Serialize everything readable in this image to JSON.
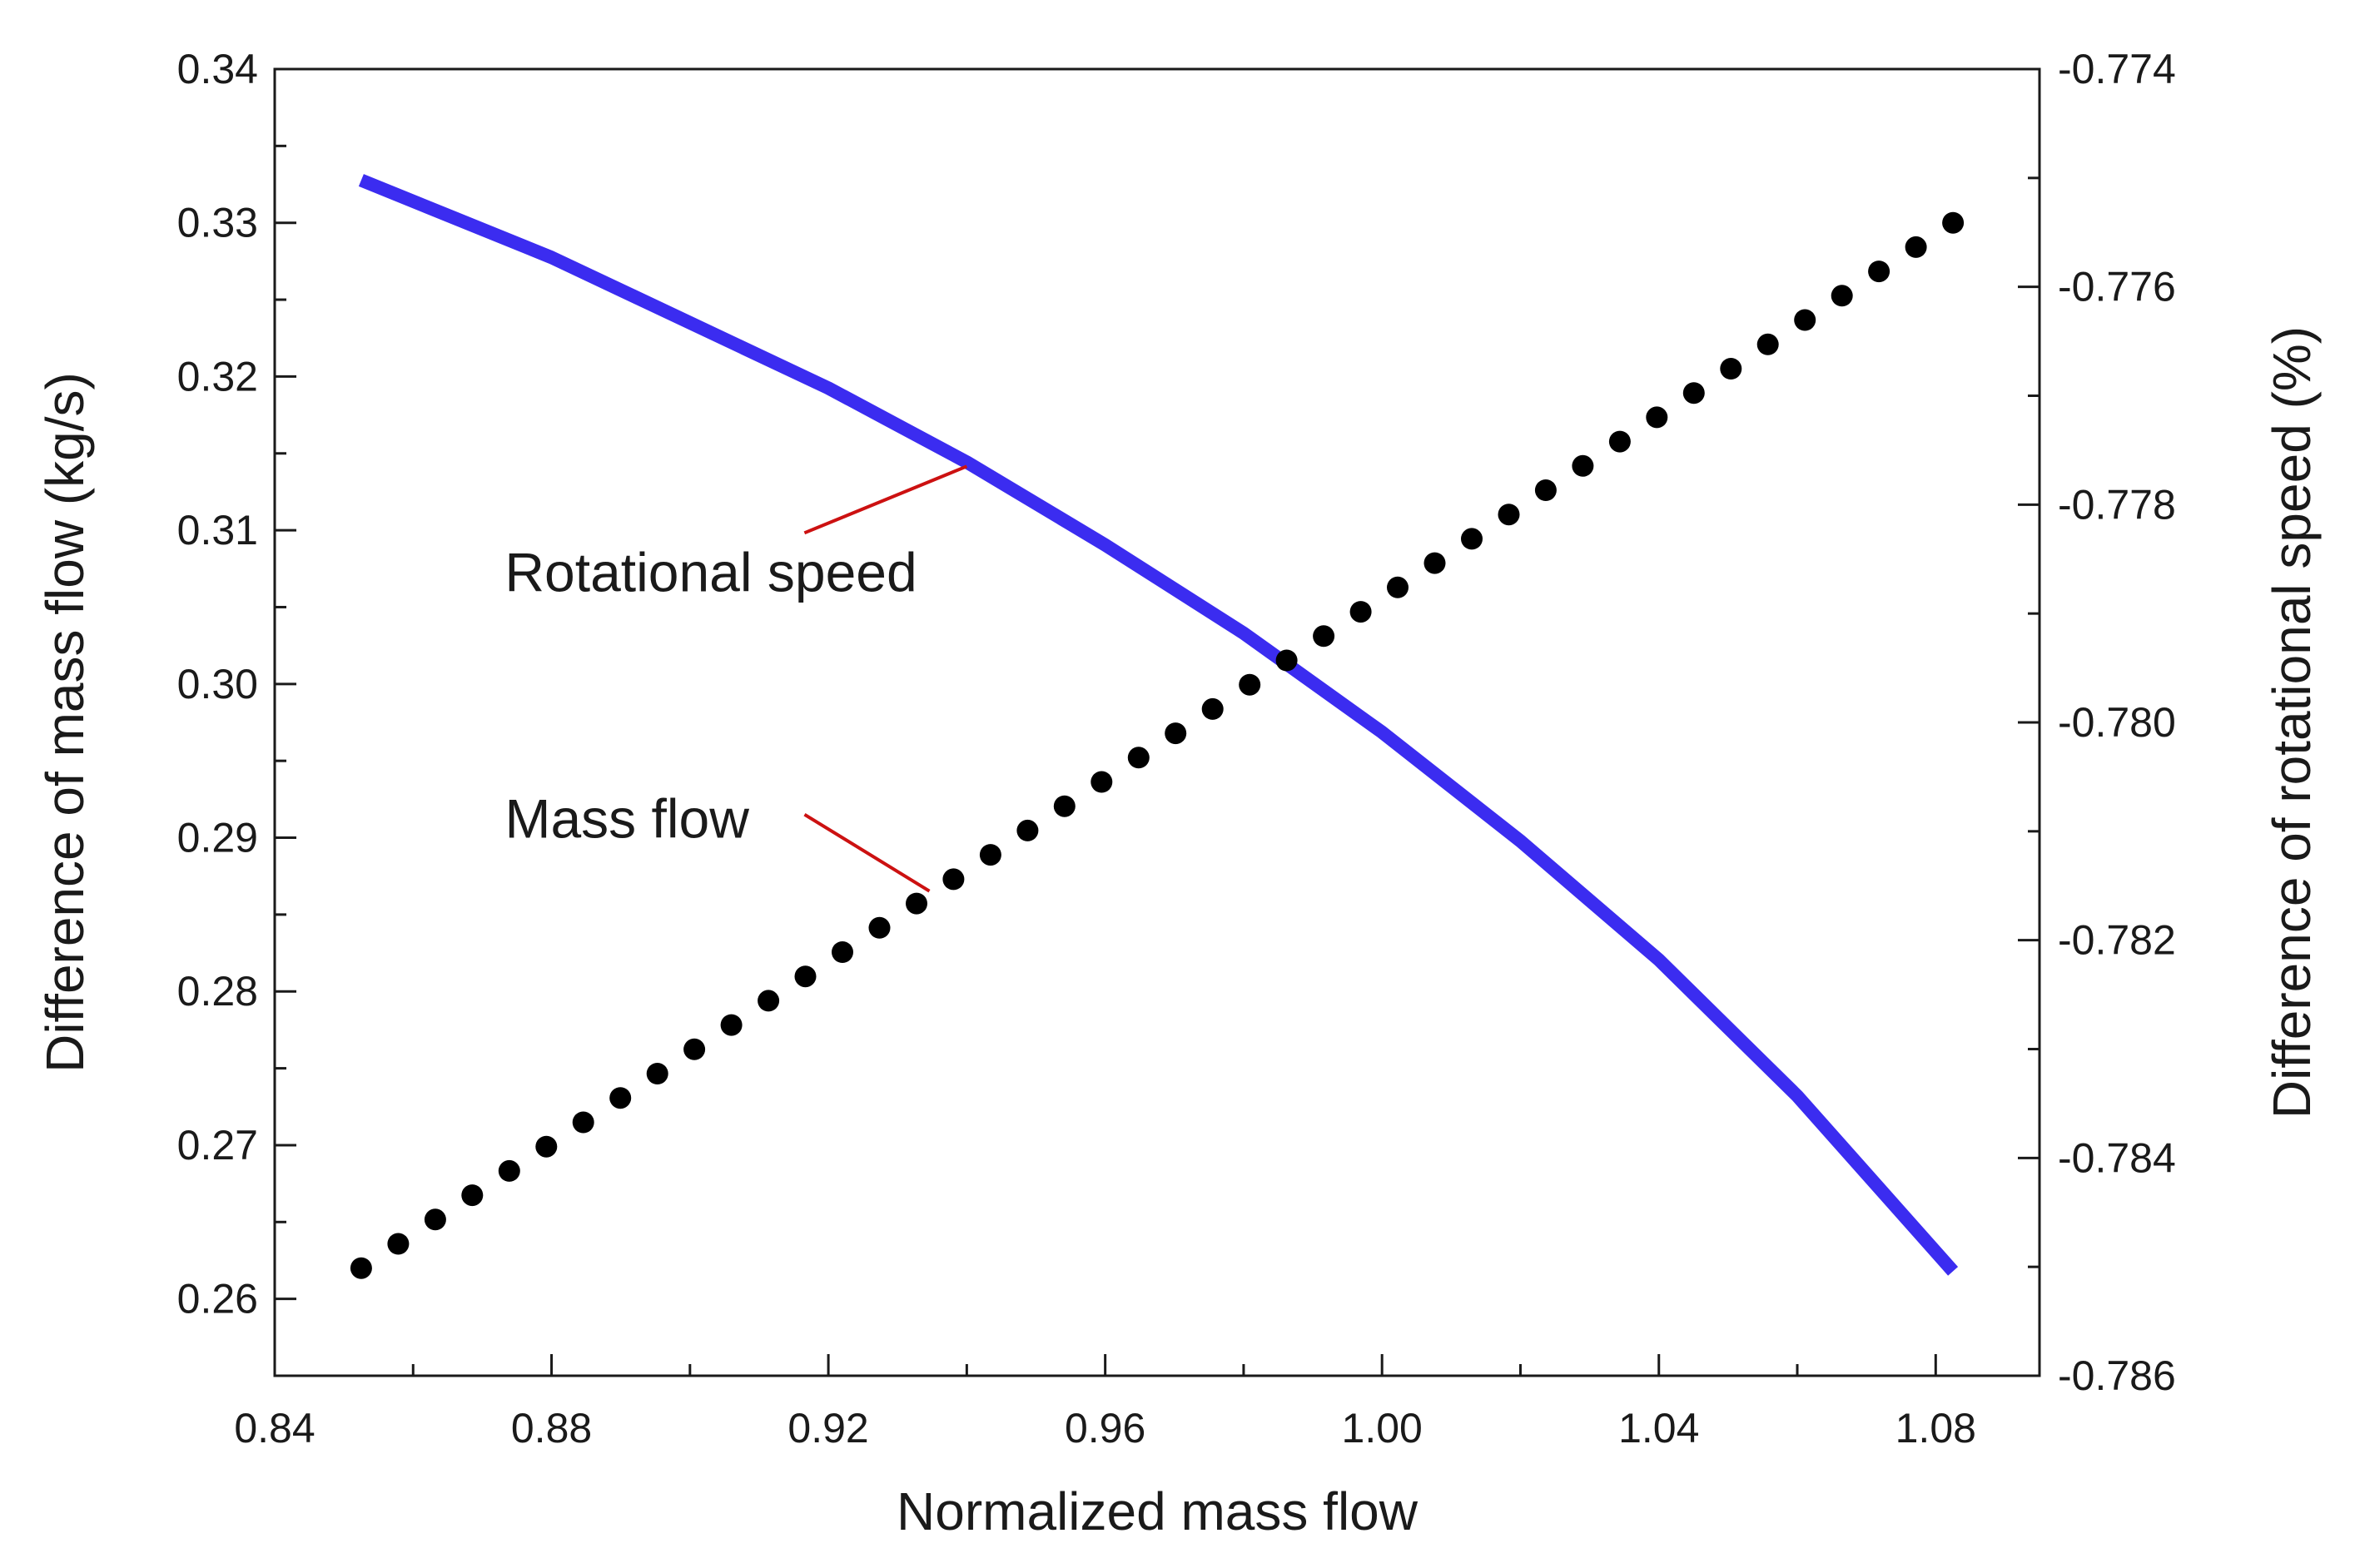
{
  "chart_data": {
    "type": "line",
    "title": "",
    "xlabel": "Normalized mass flow",
    "ylabel": "Difference of mass flow (kg/s)",
    "ylabel_right": "Difference of rotational speed (%)",
    "xlim": [
      0.84,
      1.095
    ],
    "ylim": [
      0.255,
      0.34
    ],
    "ylim_right": [
      -0.786,
      -0.774
    ],
    "x_ticks": [
      "0.84",
      "0.88",
      "0.92",
      "0.96",
      "1.00",
      "1.04",
      "1.08"
    ],
    "y_ticks": [
      "0.26",
      "0.27",
      "0.28",
      "0.29",
      "0.30",
      "0.31",
      "0.32",
      "0.33",
      "0.34"
    ],
    "y_ticks_right": [
      "-0.786",
      "-0.784",
      "-0.782",
      "-0.780",
      "-0.778",
      "-0.776",
      "-0.774"
    ],
    "grid": false,
    "colors": {
      "rotational_speed": "#3b2cf0",
      "mass_flow": "#000000",
      "leader": "#cc1111"
    },
    "series": [
      {
        "name": "Mass flow",
        "axis": "left",
        "style": "dots",
        "x_start": 0.8525,
        "x_end": 1.0825,
        "count": 44,
        "y_start": 0.262,
        "y_end": 0.33
      },
      {
        "name": "Rotational speed",
        "axis": "right",
        "style": "line",
        "x": [
          0.8525,
          0.88,
          0.92,
          0.94,
          0.96,
          0.98,
          1.0,
          1.02,
          1.04,
          1.06,
          1.0825
        ],
        "y": [
          -0.77502,
          -0.77573,
          -0.77693,
          -0.77761,
          -0.77837,
          -0.77918,
          -0.78009,
          -0.78109,
          -0.78218,
          -0.78343,
          -0.78504
        ]
      }
    ],
    "annotations": [
      {
        "text": "Rotational speed",
        "series": "Rotational speed",
        "target_x": 0.94,
        "anchor": "below-left"
      },
      {
        "text": "Mass flow",
        "series": "Mass flow",
        "target_x": 0.934,
        "anchor": "above-left"
      }
    ]
  }
}
